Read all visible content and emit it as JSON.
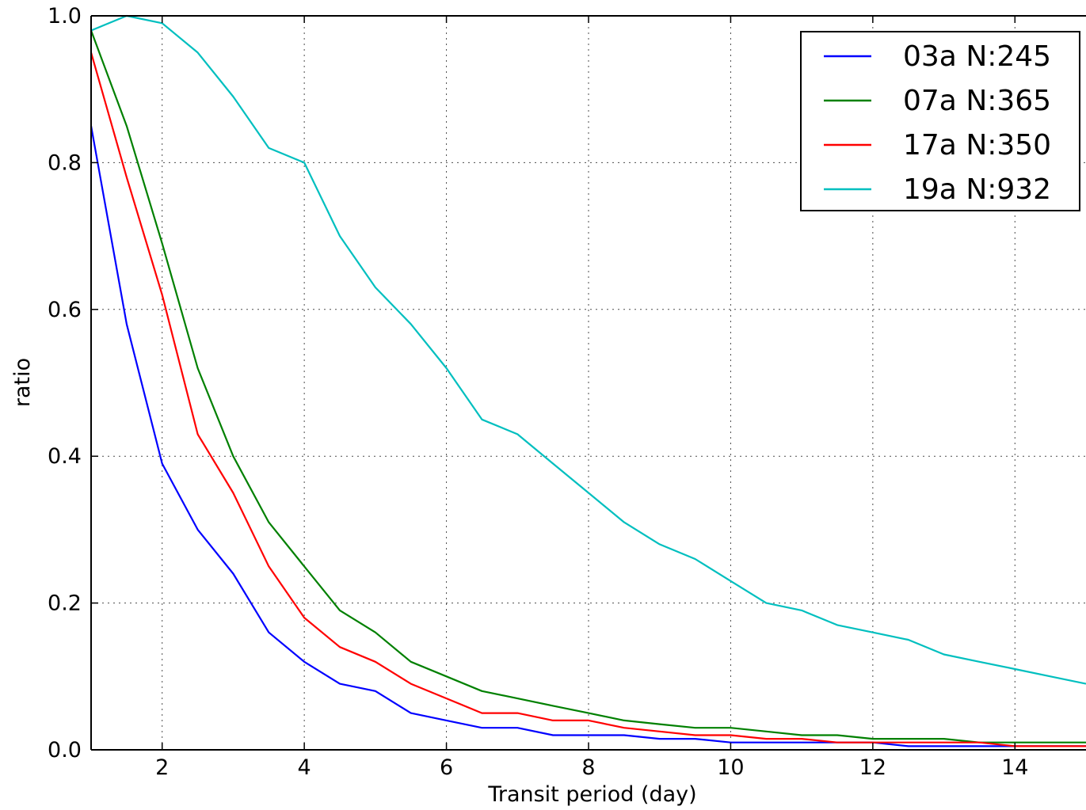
{
  "chart_data": {
    "type": "line",
    "title": "",
    "xlabel": "Transit period (day)",
    "ylabel": "ratio",
    "xlim": [
      1,
      15
    ],
    "ylim": [
      0.0,
      1.0
    ],
    "grid": true,
    "legend_position": "top-right",
    "x_ticks": [
      2,
      4,
      6,
      8,
      10,
      12,
      14
    ],
    "x_tick_labels": [
      "2",
      "4",
      "6",
      "8",
      "10",
      "12",
      "14"
    ],
    "y_ticks": [
      0.0,
      0.2,
      0.4,
      0.6,
      0.8,
      1.0
    ],
    "y_tick_labels": [
      "0.0",
      "0.2",
      "0.4",
      "0.6",
      "0.8",
      "1.0"
    ],
    "x": [
      1.0,
      1.5,
      2.0,
      2.5,
      3.0,
      3.5,
      4.0,
      4.5,
      5.0,
      5.5,
      6.0,
      6.5,
      7.0,
      7.5,
      8.0,
      8.5,
      9.0,
      9.5,
      10.0,
      10.5,
      11.0,
      11.5,
      12.0,
      12.5,
      13.0,
      13.5,
      14.0,
      14.5,
      15.0
    ],
    "series": [
      {
        "name": "03a N:245",
        "color": "#0000ff",
        "values": [
          0.85,
          0.58,
          0.39,
          0.3,
          0.24,
          0.16,
          0.12,
          0.09,
          0.08,
          0.05,
          0.04,
          0.03,
          0.03,
          0.02,
          0.02,
          0.02,
          0.015,
          0.015,
          0.01,
          0.01,
          0.01,
          0.01,
          0.01,
          0.005,
          0.005,
          0.005,
          0.005,
          0.005,
          0.005
        ]
      },
      {
        "name": "07a N:365",
        "color": "#008000",
        "values": [
          0.98,
          0.85,
          0.69,
          0.52,
          0.4,
          0.31,
          0.25,
          0.19,
          0.16,
          0.12,
          0.1,
          0.08,
          0.07,
          0.06,
          0.05,
          0.04,
          0.035,
          0.03,
          0.03,
          0.025,
          0.02,
          0.02,
          0.015,
          0.015,
          0.015,
          0.01,
          0.01,
          0.01,
          0.01
        ]
      },
      {
        "name": "17a N:350",
        "color": "#ff0000",
        "values": [
          0.95,
          0.78,
          0.62,
          0.43,
          0.35,
          0.25,
          0.18,
          0.14,
          0.12,
          0.09,
          0.07,
          0.05,
          0.05,
          0.04,
          0.04,
          0.03,
          0.025,
          0.02,
          0.02,
          0.015,
          0.015,
          0.01,
          0.01,
          0.01,
          0.01,
          0.01,
          0.005,
          0.005,
          0.005
        ]
      },
      {
        "name": "19a N:932",
        "color": "#00bfbf",
        "values": [
          0.98,
          1.0,
          0.99,
          0.95,
          0.89,
          0.82,
          0.8,
          0.7,
          0.63,
          0.58,
          0.52,
          0.45,
          0.43,
          0.39,
          0.35,
          0.31,
          0.28,
          0.26,
          0.23,
          0.2,
          0.19,
          0.17,
          0.16,
          0.15,
          0.13,
          0.12,
          0.11,
          0.1,
          0.09
        ]
      }
    ]
  }
}
